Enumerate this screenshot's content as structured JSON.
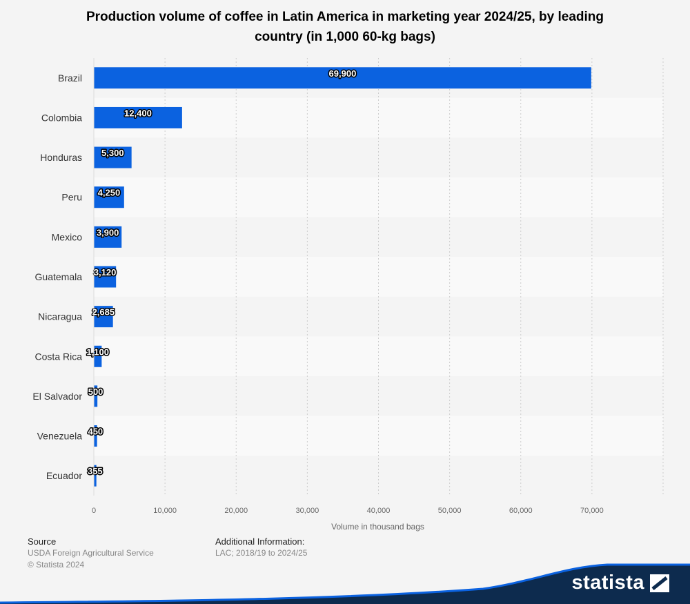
{
  "title": "Production volume of coffee in Latin America in marketing year 2024/25, by leading country (in 1,000 60-kg bags)",
  "colors": {
    "bar": "#0b62e0",
    "band": "#f9f9f9",
    "grid": "#cccccc",
    "footer": "#0d2b4e"
  },
  "chart_data": {
    "type": "bar",
    "orientation": "horizontal",
    "categories": [
      "Brazil",
      "Colombia",
      "Honduras",
      "Peru",
      "Mexico",
      "Guatemala",
      "Nicaragua",
      "Costa Rica",
      "El Salvador",
      "Venezuela",
      "Ecuador"
    ],
    "values": [
      69900,
      12400,
      5300,
      4250,
      3900,
      3120,
      2685,
      1100,
      500,
      450,
      355
    ],
    "value_labels": [
      "69,900",
      "12,400",
      "5,300",
      "4,250",
      "3,900",
      "3,120",
      "2,685",
      "1,100",
      "500",
      "450",
      "355"
    ],
    "xlabel": "Volume in thousand bags",
    "ylabel": "",
    "xlim": [
      0,
      80000
    ],
    "x_ticks": [
      0,
      10000,
      20000,
      30000,
      40000,
      50000,
      60000,
      70000
    ],
    "x_tick_labels": [
      "0",
      "10,000",
      "20,000",
      "30,000",
      "40,000",
      "50,000",
      "60,000",
      "70,000"
    ],
    "grid": true,
    "legend": "none"
  },
  "source": {
    "heading": "Source",
    "line1": "USDA Foreign Agricultural Service",
    "line2": "© Statista 2024"
  },
  "additional": {
    "heading": "Additional Information:",
    "line1": "LAC; 2018/19 to 2024/25"
  },
  "brand": {
    "name": "statista",
    "icon": "statista-logo-icon"
  }
}
